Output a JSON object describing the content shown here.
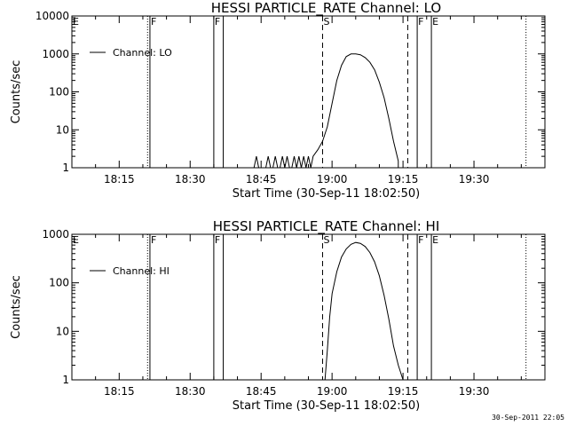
{
  "chart_data": [
    {
      "type": "line",
      "title": "HESSI PARTICLE_RATE Channel: LO",
      "xlabel": "Start Time (30-Sep-11 18:02:50)",
      "ylabel": "Counts/sec",
      "yscale": "log",
      "ylim": [
        1,
        10000
      ],
      "xlim": [
        "18:05",
        "19:45"
      ],
      "x_ticks": [
        "18:15",
        "18:30",
        "18:45",
        "19:00",
        "19:15",
        "19:30"
      ],
      "y_ticks": [
        "1",
        "10",
        "100",
        "1000",
        "10000"
      ],
      "grid": false,
      "legend": {
        "position": "top-left",
        "entries": [
          "Channel: LO"
        ]
      },
      "series": [
        {
          "name": "Channel: LO",
          "x": [
            "18:43:30",
            "18:44:00",
            "18:44:30",
            "18:46:00",
            "18:46:30",
            "18:47:00",
            "18:47:30",
            "18:48:00",
            "18:48:30",
            "18:49:00",
            "18:49:30",
            "18:50:00",
            "18:50:30",
            "18:51:00",
            "18:51:30",
            "18:52:00",
            "18:52:30",
            "18:53:00",
            "18:53:30",
            "18:54:00",
            "18:54:30",
            "18:55:00",
            "18:55:30",
            "18:56:00",
            "18:57:00",
            "18:58:00",
            "18:59:00",
            "19:00:00",
            "19:01:00",
            "19:02:00",
            "19:03:00",
            "19:04:00",
            "19:05:00",
            "19:06:00",
            "19:07:00",
            "19:08:00",
            "19:09:00",
            "19:10:00",
            "19:11:00",
            "19:12:00",
            "19:13:00",
            "19:14:00"
          ],
          "y": [
            1,
            2,
            1,
            1,
            2,
            1,
            1,
            2,
            1,
            1,
            2,
            1,
            2,
            1,
            1,
            2,
            1,
            2,
            1,
            2,
            1,
            2,
            1,
            2,
            3,
            5,
            12,
            50,
            200,
            500,
            850,
            1000,
            1000,
            950,
            800,
            600,
            380,
            180,
            70,
            20,
            5,
            1.5
          ]
        }
      ],
      "markers": [
        {
          "label": "E",
          "time": "18:05",
          "style": "dotted"
        },
        {
          "label": "",
          "time": "18:21",
          "style": "dotted"
        },
        {
          "label": "F",
          "time": "18:21:30",
          "style": "solid"
        },
        {
          "label": "F",
          "time": "18:35",
          "style": "solid"
        },
        {
          "label": "",
          "time": "18:37",
          "style": "solid"
        },
        {
          "label": "S",
          "time": "18:58",
          "style": "dashed"
        },
        {
          "label": "",
          "time": "19:16",
          "style": "dashed"
        },
        {
          "label": "F",
          "time": "19:18",
          "style": "solid"
        },
        {
          "label": "E",
          "time": "19:21",
          "style": "solid"
        },
        {
          "label": "",
          "time": "19:41",
          "style": "dotted"
        }
      ]
    },
    {
      "type": "line",
      "title": "HESSI PARTICLE_RATE Channel: HI",
      "xlabel": "Start Time (30-Sep-11 18:02:50)",
      "ylabel": "Counts/sec",
      "yscale": "log",
      "ylim": [
        1,
        1000
      ],
      "xlim": [
        "18:05",
        "19:45"
      ],
      "x_ticks": [
        "18:15",
        "18:30",
        "18:45",
        "19:00",
        "19:15",
        "19:30"
      ],
      "y_ticks": [
        "1",
        "10",
        "100",
        "1000"
      ],
      "grid": false,
      "legend": {
        "position": "top-left",
        "entries": [
          "Channel: HI"
        ]
      },
      "series": [
        {
          "name": "Channel: HI",
          "x": [
            "18:58:30",
            "18:59:00",
            "18:59:30",
            "19:00:00",
            "19:01:00",
            "19:02:00",
            "19:03:00",
            "19:04:00",
            "19:05:00",
            "19:06:00",
            "19:07:00",
            "19:08:00",
            "19:09:00",
            "19:10:00",
            "19:11:00",
            "19:12:00",
            "19:13:00",
            "19:14:00",
            "19:15:00"
          ],
          "y": [
            1,
            4,
            20,
            60,
            170,
            340,
            500,
            620,
            680,
            650,
            560,
            420,
            270,
            140,
            55,
            18,
            5,
            2,
            1
          ]
        }
      ],
      "markers": [
        {
          "label": "E",
          "time": "18:05",
          "style": "dotted"
        },
        {
          "label": "",
          "time": "18:21",
          "style": "dotted"
        },
        {
          "label": "F",
          "time": "18:21:30",
          "style": "solid"
        },
        {
          "label": "F",
          "time": "18:35",
          "style": "solid"
        },
        {
          "label": "",
          "time": "18:37",
          "style": "solid"
        },
        {
          "label": "S",
          "time": "18:58",
          "style": "dashed"
        },
        {
          "label": "",
          "time": "19:16",
          "style": "dashed"
        },
        {
          "label": "F",
          "time": "19:18",
          "style": "solid"
        },
        {
          "label": "E",
          "time": "19:21",
          "style": "solid"
        },
        {
          "label": "",
          "time": "19:41",
          "style": "dotted"
        }
      ]
    }
  ],
  "footer": {
    "timestamp": "30-Sep-2011 22:05"
  }
}
